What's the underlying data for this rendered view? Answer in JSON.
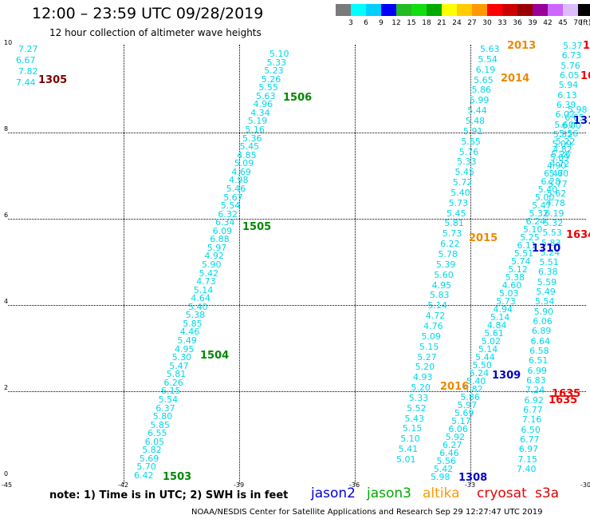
{
  "header": {
    "title": "12:00 – 23:59 UTC 09/28/2019",
    "subtitle": "12 hour collection of altimeter wave heights"
  },
  "scale": {
    "colors": [
      "#7a7a7a",
      "#00ffff",
      "#00cfff",
      "#0000ff",
      "#22bb22",
      "#11dd11",
      "#00aa00",
      "#ffff00",
      "#ffcc00",
      "#ff9900",
      "#ff0000",
      "#cc0000",
      "#990000",
      "#990099",
      "#cc66ff",
      "#ddbbff",
      "#000000"
    ],
    "labels": [
      "3",
      "6",
      "9",
      "12",
      "15",
      "18",
      "21",
      "24",
      "27",
      "30",
      "33",
      "36",
      "39",
      "42",
      "45",
      "70",
      "(ft)"
    ]
  },
  "chart_data": {
    "type": "scatter",
    "title": "12:00 – 23:59 UTC 09/28/2019",
    "xlim": [
      -45,
      -30
    ],
    "ylim": [
      0,
      10
    ],
    "x_ticks": [
      "-45",
      "-42",
      "-39",
      "-36",
      "-33",
      "-30"
    ],
    "y_ticks": [
      "0",
      "2",
      "4",
      "6",
      "8",
      "10"
    ],
    "units": "SWH in feet",
    "grid": true,
    "tracks": [
      {
        "satellite": "jason2",
        "color": "#00d8e8",
        "values": [
          "7.27",
          "6.67",
          "7.82",
          "7.44",
          "6.42",
          "5.70",
          "5.69",
          "5.82",
          "6.05",
          "6.55",
          "5.85",
          "5.80",
          "6.37",
          "5.54",
          "6.15",
          "6.26",
          "5.81",
          "5.47",
          "5.30",
          "4.95",
          "5.49",
          "4.46",
          "5.85",
          "5.38",
          "5.40",
          "4.64",
          "5.14",
          "4.73",
          "5.42",
          "5.90",
          "4.92",
          "5.97",
          "6.88",
          "6.09",
          "6.34",
          "6.32",
          "5.54",
          "5.67",
          "5.46",
          "4.98",
          "4.69",
          "5.09",
          "4.85",
          "5.45",
          "5.36",
          "5.16",
          "5.19",
          "4.34",
          "4.96",
          "5.63",
          "5.55",
          "5.26",
          "5.23",
          "5.33",
          "5.10"
        ]
      },
      {
        "satellite": "jason3",
        "color": "#00d8e8",
        "values": [
          "5.01",
          "5.41",
          "5.10",
          "5.15",
          "5.43",
          "5.52",
          "5.33",
          "5.20",
          "4.93",
          "5.20",
          "5.27",
          "5.15",
          "5.09",
          "4.76",
          "4.72",
          "5.14",
          "5.83",
          "4.95",
          "5.60",
          "5.39",
          "5.78",
          "6.22",
          "5.73",
          "5.81",
          "5.45",
          "5.73",
          "5.40",
          "5.72",
          "5.45",
          "5.33",
          "5.76",
          "5.65",
          "5.91",
          "5.48",
          "5.44",
          "5.99",
          "5.86",
          "5.65",
          "6.19",
          "5.54",
          "5.63"
        ]
      },
      {
        "satellite": "altika",
        "color": "#00d8e8",
        "values": [
          "5.98",
          "5.42",
          "5.56",
          "6.46",
          "6.27",
          "5.92",
          "6.06",
          "5.17",
          "5.69",
          "5.97",
          "5.86",
          "5.82",
          "5.40",
          "5.24",
          "5.50",
          "5.44",
          "5.14",
          "5.02",
          "5.61",
          "4.84",
          "5.14",
          "4.94",
          "5.73",
          "5.03",
          "4.60",
          "5.38",
          "5.12",
          "5.74",
          "5.51",
          "6.11",
          "5.25",
          "5.10",
          "6.24",
          "5.32",
          "5.47",
          "5.00",
          "5.40",
          "6.28",
          "6.47",
          "4.90",
          "5.09",
          "4.82",
          "5.22",
          "5.56",
          "6.00",
          "6.65",
          "5.98"
        ]
      },
      {
        "satellite": "cryosat",
        "color": "#00d8e8",
        "values": [
          "7.40",
          "7.15",
          "6.97",
          "6.77",
          "6.50",
          "7.16",
          "6.77",
          "6.92",
          "7.24",
          "6.83",
          "6.99",
          "6.51",
          "6.58",
          "6.64",
          "6.89",
          "6.06",
          "5.90",
          "5.54",
          "5.49",
          "5.59",
          "6.38",
          "5.51",
          "5.24",
          "5.83",
          "5.53",
          "5.32",
          "6.19",
          "4.78",
          "5.62",
          "5.77",
          "5.60",
          "4.72",
          "5.26",
          "5.09",
          "5.32",
          "5.60",
          "6.02",
          "6.39",
          "6.13",
          "5.94",
          "6.05",
          "5.76",
          "6.73",
          "5.37"
        ]
      }
    ],
    "passes": [
      {
        "label": "1305",
        "color": "#7a0000"
      },
      {
        "label": "1506",
        "color": "#008800"
      },
      {
        "label": "1505",
        "color": "#008800"
      },
      {
        "label": "1504",
        "color": "#008800"
      },
      {
        "label": "1503",
        "color": "#008800"
      },
      {
        "label": "2013",
        "color": "#ee8800"
      },
      {
        "label": "2014",
        "color": "#ee8800"
      },
      {
        "label": "2015",
        "color": "#ee8800"
      },
      {
        "label": "2016",
        "color": "#ee8800"
      },
      {
        "label": "1310",
        "color": "#0000cc"
      },
      {
        "label": "1309",
        "color": "#0000cc"
      },
      {
        "label": "1308",
        "color": "#0000cc"
      },
      {
        "label": "131",
        "color": "#0000cc"
      },
      {
        "label": "1634",
        "color": "#ee0000"
      },
      {
        "label": "1635",
        "color": "#ee0000"
      },
      {
        "label": "1635",
        "color": "#ee0000"
      },
      {
        "label": "16",
        "color": "#ee0000"
      },
      {
        "label": "1",
        "color": "#ee0000"
      }
    ]
  },
  "note": "note:  1) Time is in UTC;  2) SWH is in feet",
  "legend": [
    {
      "name": "jason2",
      "color": "#0000dd"
    },
    {
      "name": "jason3",
      "color": "#00aa00"
    },
    {
      "name": "altika",
      "color": "#ff9900"
    },
    {
      "name": "cryosat",
      "color": "#ee0000"
    },
    {
      "name": "s3a",
      "color": "#dd0000"
    }
  ],
  "footer": "NOAA/NESDIS Center for Satellite Applications and Research    Sep 29 12:27:47 UTC 2019"
}
